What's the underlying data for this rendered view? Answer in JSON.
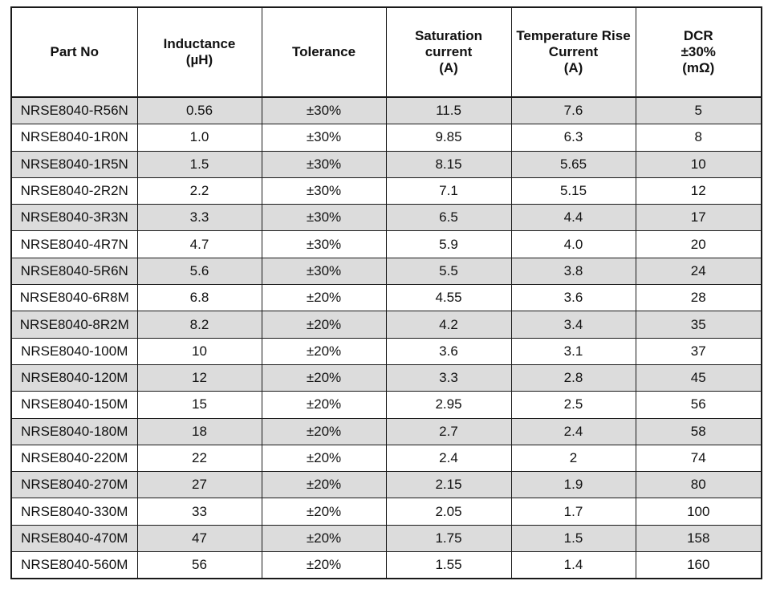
{
  "table": {
    "headers": [
      {
        "key": "part_no",
        "lines": [
          "Part No"
        ]
      },
      {
        "key": "inductance",
        "lines": [
          "Inductance",
          "(µH)"
        ]
      },
      {
        "key": "tolerance",
        "lines": [
          "Tolerance"
        ]
      },
      {
        "key": "saturation_current",
        "lines": [
          "Saturation",
          "current",
          "(A)"
        ]
      },
      {
        "key": "temperature_rise_current",
        "lines": [
          "Temperature Rise",
          "Current",
          "(A)"
        ]
      },
      {
        "key": "dcr",
        "lines": [
          "DCR",
          "±30%",
          "(mΩ)"
        ]
      }
    ],
    "rows": [
      [
        "NRSE8040-R56N",
        "0.56",
        "±30%",
        "11.5",
        "7.6",
        "5"
      ],
      [
        "NRSE8040-1R0N",
        "1.0",
        "±30%",
        "9.85",
        "6.3",
        "8"
      ],
      [
        "NRSE8040-1R5N",
        "1.5",
        "±30%",
        "8.15",
        "5.65",
        "10"
      ],
      [
        "NRSE8040-2R2N",
        "2.2",
        "±30%",
        "7.1",
        "5.15",
        "12"
      ],
      [
        "NRSE8040-3R3N",
        "3.3",
        "±30%",
        "6.5",
        "4.4",
        "17"
      ],
      [
        "NRSE8040-4R7N",
        "4.7",
        "±30%",
        "5.9",
        "4.0",
        "20"
      ],
      [
        "NRSE8040-5R6N",
        "5.6",
        "±30%",
        "5.5",
        "3.8",
        "24"
      ],
      [
        "NRSE8040-6R8M",
        "6.8",
        "±20%",
        "4.55",
        "3.6",
        "28"
      ],
      [
        "NRSE8040-8R2M",
        "8.2",
        "±20%",
        "4.2",
        "3.4",
        "35"
      ],
      [
        "NRSE8040-100M",
        "10",
        "±20%",
        "3.6",
        "3.1",
        "37"
      ],
      [
        "NRSE8040-120M",
        "12",
        "±20%",
        "3.3",
        "2.8",
        "45"
      ],
      [
        "NRSE8040-150M",
        "15",
        "±20%",
        "2.95",
        "2.5",
        "56"
      ],
      [
        "NRSE8040-180M",
        "18",
        "±20%",
        "2.7",
        "2.4",
        "58"
      ],
      [
        "NRSE8040-220M",
        "22",
        "±20%",
        "2.4",
        "2",
        "74"
      ],
      [
        "NRSE8040-270M",
        "27",
        "±20%",
        "2.15",
        "1.9",
        "80"
      ],
      [
        "NRSE8040-330M",
        "33",
        "±20%",
        "2.05",
        "1.7",
        "100"
      ],
      [
        "NRSE8040-470M",
        "47",
        "±20%",
        "1.75",
        "1.5",
        "158"
      ],
      [
        "NRSE8040-560M",
        "56",
        "±20%",
        "1.55",
        "1.4",
        "160"
      ]
    ]
  },
  "colors": {
    "shaded_row": "#dcdcdc",
    "plain_row": "#ffffff",
    "border": "#1a1a1a"
  }
}
